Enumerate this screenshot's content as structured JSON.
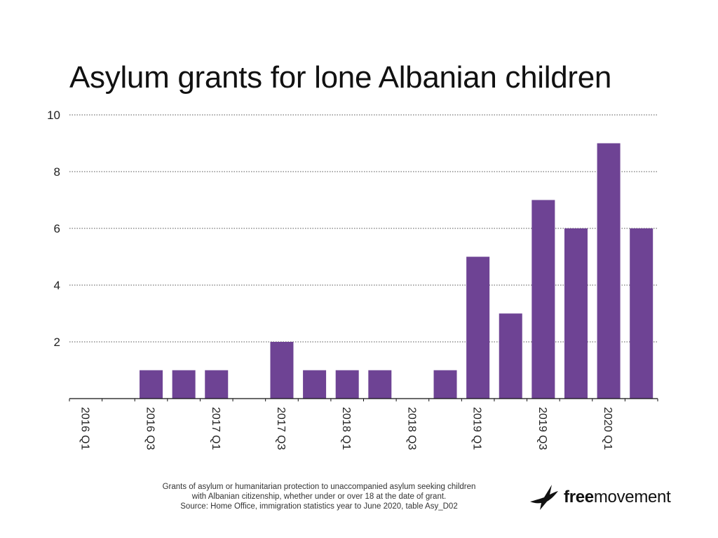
{
  "chart_data": {
    "type": "bar",
    "title": "Asylum grants for lone Albanian children",
    "categories": [
      "2016 Q1",
      "2016 Q2",
      "2016 Q3",
      "2016 Q4",
      "2017 Q1",
      "2017 Q2",
      "2017 Q3",
      "2017 Q4",
      "2018 Q1",
      "2018 Q2",
      "2018 Q3",
      "2018 Q4",
      "2019 Q1",
      "2019 Q2",
      "2019 Q3",
      "2019 Q4",
      "2020 Q1",
      "2020 Q2"
    ],
    "tick_labels": [
      "2016 Q1",
      "2016 Q3",
      "2017 Q1",
      "2017 Q3",
      "2018 Q1",
      "2018 Q3",
      "2019 Q1",
      "2019 Q3",
      "2020 Q1"
    ],
    "values": [
      0,
      0,
      1,
      1,
      1,
      0,
      2,
      1,
      1,
      1,
      0,
      1,
      5,
      3,
      7,
      6,
      9,
      6
    ],
    "ylim": [
      0,
      10
    ],
    "yticks": [
      2,
      4,
      6,
      8,
      10
    ],
    "xlabel": "",
    "ylabel": "",
    "bar_color": "#6e4394",
    "grid": true,
    "grid_style": "dotted"
  },
  "caption": {
    "line1": "Grants of asylum or humanitarian protection to unaccompanied asylum seeking children",
    "line2": "with Albanian citizenship, whether under or over 18 at the date of grant.",
    "line3": "Source: Home Office, immigration statistics year to June 2020, table Asy_D02"
  },
  "logo": {
    "icon": "bird-icon",
    "bold": "free",
    "regular": "movement"
  }
}
